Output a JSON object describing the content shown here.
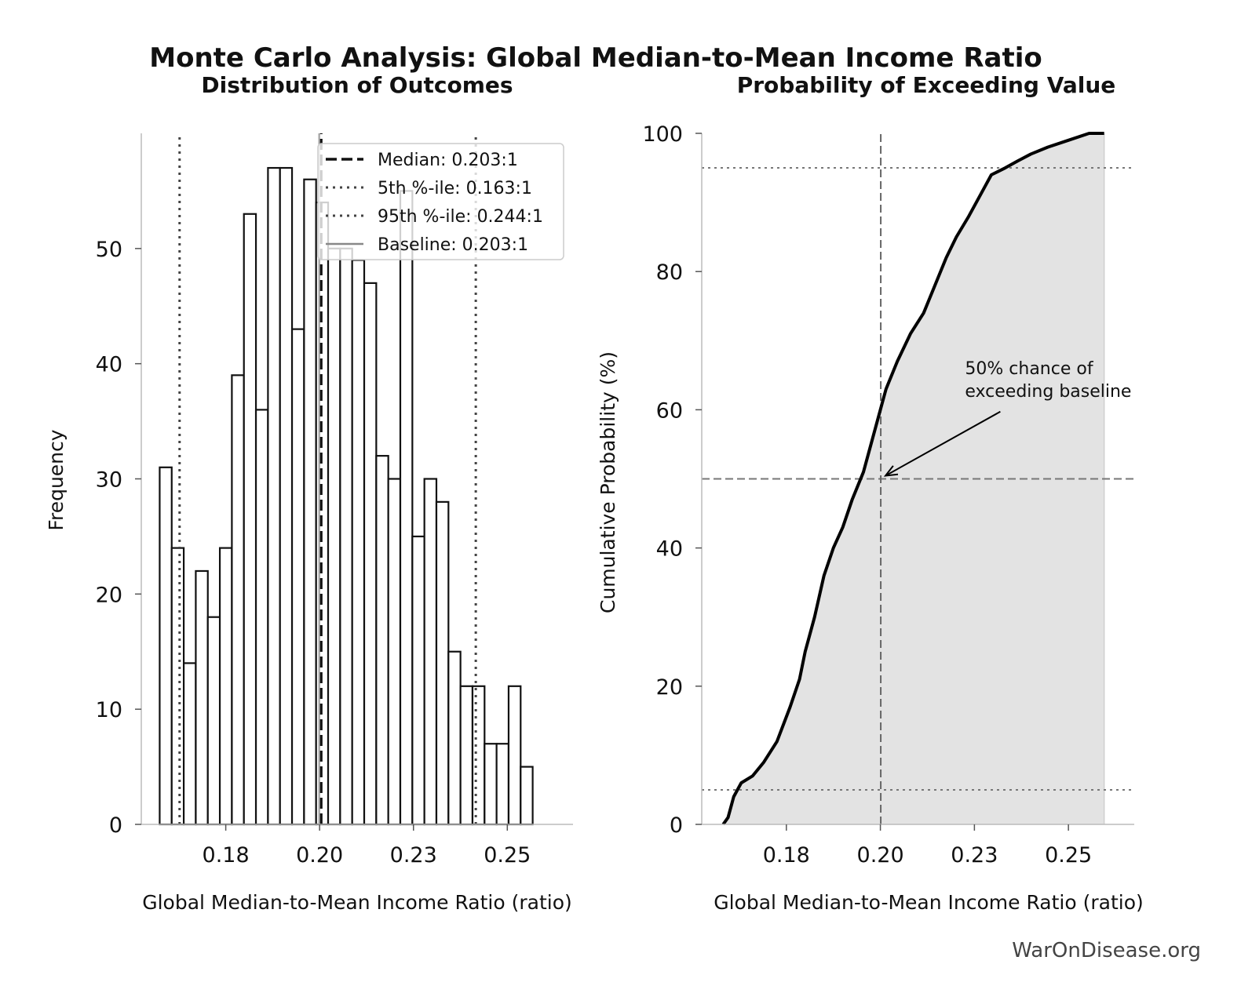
{
  "figure": {
    "title": "Monte Carlo Analysis: Global Median-to-Mean Income Ratio",
    "watermark": "WarOnDisease.org"
  },
  "chart_data": [
    {
      "type": "bar",
      "title": "Distribution of Outcomes",
      "xlabel": "Global Median-to-Mean Income Ratio (ratio)",
      "ylabel": "Frequency",
      "xlim": [
        0.1555,
        0.2705
      ],
      "ylim": [
        0,
        60
      ],
      "xticks": [
        0.178,
        0.203,
        0.228,
        0.253
      ],
      "xtick_labels": [
        "0.18",
        "0.20",
        "0.23",
        "0.25"
      ],
      "yticks": [
        0,
        10,
        20,
        30,
        40,
        50
      ],
      "bin_start": 0.1604,
      "bin_width": 0.003205,
      "values": [
        31,
        24,
        14,
        22,
        18,
        24,
        39,
        53,
        36,
        57,
        57,
        43,
        56,
        54,
        50,
        50,
        49,
        47,
        32,
        30,
        55,
        25,
        30,
        28,
        15,
        12,
        12,
        7,
        7,
        12,
        5
      ],
      "reference_lines": [
        {
          "label": "Median: 0.203:1",
          "x": 0.2034,
          "style": "dashed"
        },
        {
          "label": "5th %-ile: 0.163:1",
          "x": 0.1657,
          "style": "dotted"
        },
        {
          "label": "95th %-ile: 0.244:1",
          "x": 0.2446,
          "style": "dotted"
        },
        {
          "label": "Baseline: 0.203:1",
          "x": 0.2029,
          "style": "solid"
        }
      ],
      "legend_loc": "upper right"
    },
    {
      "type": "area",
      "title": "Probability of Exceeding Value",
      "xlabel": "Global Median-to-Mean Income Ratio (ratio)",
      "ylabel": "Cumulative Probability (%)",
      "xlim": [
        0.1555,
        0.2705
      ],
      "ylim": [
        0,
        100
      ],
      "xticks": [
        0.178,
        0.203,
        0.228,
        0.253
      ],
      "xtick_labels": [
        "0.18",
        "0.20",
        "0.23",
        "0.25"
      ],
      "yticks": [
        0,
        20,
        40,
        60,
        80,
        100
      ],
      "series": [
        {
          "x": [
            0.1612,
            0.1625,
            0.164,
            0.166,
            0.169,
            0.172,
            0.1755,
            0.179,
            0.1815,
            0.183,
            0.1855,
            0.188,
            0.1905,
            0.193,
            0.1955,
            0.1985,
            0.2005,
            0.2025,
            0.2045,
            0.2075,
            0.211,
            0.2145,
            0.2175,
            0.2205,
            0.2232,
            0.2265,
            0.2295,
            0.2325,
            0.2362,
            0.2395,
            0.243,
            0.2475,
            0.253,
            0.2585,
            0.2625
          ],
          "y": [
            0,
            1,
            4,
            6,
            7,
            9,
            12,
            17,
            21,
            25,
            30,
            36,
            40,
            43,
            47,
            51,
            55,
            59,
            63,
            67,
            71,
            74,
            78,
            82,
            85,
            88,
            91,
            94,
            95,
            96,
            97,
            98,
            99,
            100,
            100
          ]
        }
      ],
      "hlines": [
        5,
        50,
        95
      ],
      "vline_x": 0.2031,
      "annotation": {
        "text_lines": [
          "50% chance of",
          "exceeding baseline"
        ],
        "xy": [
          0.2031,
          50
        ],
        "xytext": [
          0.2255,
          62
        ]
      }
    }
  ]
}
